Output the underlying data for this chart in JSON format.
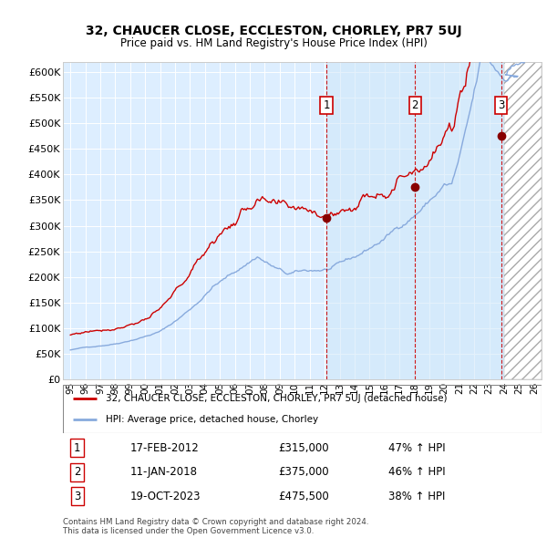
{
  "title": "32, CHAUCER CLOSE, ECCLESTON, CHORLEY, PR7 5UJ",
  "subtitle": "Price paid vs. HM Land Registry's House Price Index (HPI)",
  "background_color": "#ffffff",
  "plot_bg_color": "#ddeeff",
  "plot_bg_color_light": "#eef4ff",
  "grid_color": "#ffffff",
  "ylim": [
    0,
    620000
  ],
  "yticks": [
    0,
    50000,
    100000,
    150000,
    200000,
    250000,
    300000,
    350000,
    400000,
    450000,
    500000,
    550000,
    600000
  ],
  "ytick_labels": [
    "£0",
    "£50K",
    "£100K",
    "£150K",
    "£200K",
    "£250K",
    "£300K",
    "£350K",
    "£400K",
    "£450K",
    "£500K",
    "£550K",
    "£600K"
  ],
  "hpi_line_color": "#88aadd",
  "property_line_color": "#cc0000",
  "sale_dates": [
    2012.12,
    2018.04,
    2023.8
  ],
  "sale_prices": [
    315000,
    375000,
    475500
  ],
  "sale_labels": [
    "1",
    "2",
    "3"
  ],
  "shade_start": 2012.12,
  "shade_end": 2024.0,
  "hatch_start": 2024.0,
  "hatch_end": 2026.5,
  "legend_property": "32, CHAUCER CLOSE, ECCLESTON, CHORLEY, PR7 5UJ (detached house)",
  "legend_hpi": "HPI: Average price, detached house, Chorley",
  "table_rows": [
    {
      "num": "1",
      "date": "17-FEB-2012",
      "price": "£315,000",
      "change": "47% ↑ HPI"
    },
    {
      "num": "2",
      "date": "11-JAN-2018",
      "price": "£375,000",
      "change": "46% ↑ HPI"
    },
    {
      "num": "3",
      "date": "19-OCT-2023",
      "price": "£475,500",
      "change": "38% ↑ HPI"
    }
  ],
  "footer": "Contains HM Land Registry data © Crown copyright and database right 2024.\nThis data is licensed under the Open Government Licence v3.0.",
  "xlim_start": 1994.5,
  "xlim_end": 2026.5,
  "xtick_years": [
    1995,
    1996,
    1997,
    1998,
    1999,
    2000,
    2001,
    2002,
    2003,
    2004,
    2005,
    2006,
    2007,
    2008,
    2009,
    2010,
    2011,
    2012,
    2013,
    2014,
    2015,
    2016,
    2017,
    2018,
    2019,
    2020,
    2021,
    2022,
    2023,
    2024,
    2025,
    2026
  ]
}
